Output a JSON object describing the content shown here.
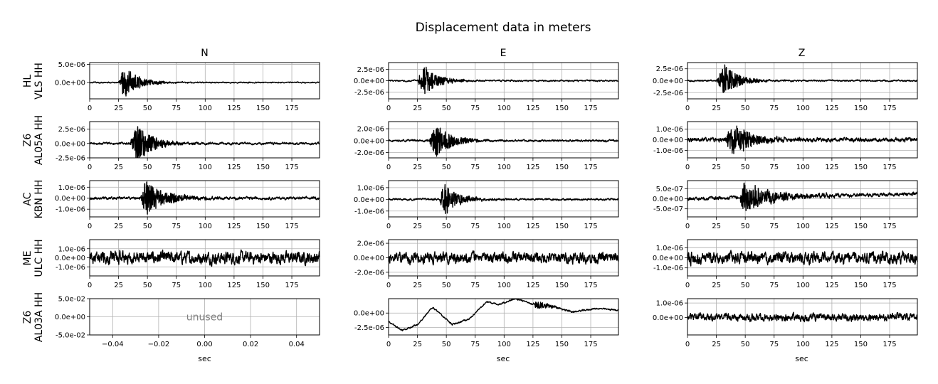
{
  "figure": {
    "title": "Displacement data in meters",
    "columns": [
      "N",
      "E",
      "Z"
    ],
    "xlabel": "sec"
  },
  "rows": [
    {
      "network": "HL",
      "station": "VLS HH"
    },
    {
      "network": "Z6",
      "station": "AL05A HH"
    },
    {
      "network": "AC",
      "station": "KBN HH"
    },
    {
      "network": "ME",
      "station": "ULC HH"
    },
    {
      "network": "Z6",
      "station": "AL03A HH"
    }
  ],
  "chart_data": [
    {
      "type": "line",
      "row": 0,
      "col": "N",
      "xlim": [
        0,
        199
      ],
      "ylim": [
        -4.5e-06,
        5.5e-06
      ],
      "xticks": [
        0,
        25,
        50,
        75,
        100,
        125,
        150,
        175
      ],
      "xtick_labels": [
        "0",
        "25",
        "50",
        "75",
        "100",
        "125",
        "150",
        "175"
      ],
      "yticks": [
        0,
        5e-06
      ],
      "ytick_labels": [
        "0.0e+00",
        "5.0e-06"
      ],
      "grid": true,
      "series": [
        {
          "color": "#000000",
          "amp": 4.8e-06,
          "event_start": 25,
          "peak_time": 30,
          "decay": 12,
          "noise": 3e-07,
          "drift": 0,
          "seed": 1
        }
      ]
    },
    {
      "type": "line",
      "row": 0,
      "col": "E",
      "xlim": [
        0,
        199
      ],
      "ylim": [
        -4e-06,
        4e-06
      ],
      "xticks": [
        0,
        25,
        50,
        75,
        100,
        125,
        150,
        175
      ],
      "xtick_labels": [
        "0",
        "25",
        "50",
        "75",
        "100",
        "125",
        "150",
        "175"
      ],
      "yticks": [
        -2.5e-06,
        0,
        2.5e-06
      ],
      "ytick_labels": [
        "-2.5e-06",
        "0.0e+00",
        "2.5e-06"
      ],
      "grid": true,
      "series": [
        {
          "color": "#000000",
          "amp": 3.8e-06,
          "event_start": 25,
          "peak_time": 30,
          "decay": 12,
          "noise": 3e-07,
          "drift": 0,
          "seed": 2
        }
      ]
    },
    {
      "type": "line",
      "row": 0,
      "col": "Z",
      "xlim": [
        0,
        199
      ],
      "ylim": [
        -3.8e-06,
        3.8e-06
      ],
      "xticks": [
        0,
        25,
        50,
        75,
        100,
        125,
        150,
        175
      ],
      "xtick_labels": [
        "0",
        "25",
        "50",
        "75",
        "100",
        "125",
        "150",
        "175"
      ],
      "yticks": [
        -2.5e-06,
        0,
        2.5e-06
      ],
      "ytick_labels": [
        "-2.5e-06",
        "0.0e+00",
        "2.5e-06"
      ],
      "grid": true,
      "series": [
        {
          "color": "#000000",
          "amp": 3.7e-06,
          "event_start": 25,
          "peak_time": 32,
          "decay": 12,
          "noise": 3e-07,
          "drift": 0,
          "seed": 3
        }
      ]
    },
    {
      "type": "line",
      "row": 1,
      "col": "N",
      "xlim": [
        0,
        199
      ],
      "ylim": [
        -2.5e-06,
        3.8e-06
      ],
      "xticks": [
        0,
        25,
        50,
        75,
        100,
        125,
        150,
        175
      ],
      "xtick_labels": [
        "0",
        "25",
        "50",
        "75",
        "100",
        "125",
        "150",
        "175"
      ],
      "yticks": [
        -2.5e-06,
        0,
        2.5e-06
      ],
      "ytick_labels": [
        "-2.5e-06",
        "0.0e+00",
        "2.5e-06"
      ],
      "grid": true,
      "series": [
        {
          "color": "#000000",
          "amp": 3.7e-06,
          "event_start": 35,
          "peak_time": 41,
          "decay": 13,
          "noise": 3.5e-07,
          "drift": 0,
          "seed": 4
        }
      ]
    },
    {
      "type": "line",
      "row": 1,
      "col": "E",
      "xlim": [
        0,
        199
      ],
      "ylim": [
        -2.9e-06,
        3.2e-06
      ],
      "xticks": [
        0,
        25,
        50,
        75,
        100,
        125,
        150,
        175
      ],
      "xtick_labels": [
        "0",
        "25",
        "50",
        "75",
        "100",
        "125",
        "150",
        "175"
      ],
      "yticks": [
        -2e-06,
        0,
        2e-06
      ],
      "ytick_labels": [
        "-2.0e-06",
        "0.0e+00",
        "2.0e-06"
      ],
      "grid": true,
      "series": [
        {
          "color": "#000000",
          "amp": 3e-06,
          "event_start": 35,
          "peak_time": 40,
          "decay": 14,
          "noise": 3e-07,
          "drift": 0,
          "seed": 5
        }
      ]
    },
    {
      "type": "line",
      "row": 1,
      "col": "Z",
      "xlim": [
        0,
        199
      ],
      "ylim": [
        -1.7e-06,
        1.7e-06
      ],
      "xticks": [
        0,
        25,
        50,
        75,
        100,
        125,
        150,
        175
      ],
      "xtick_labels": [
        "0",
        "25",
        "50",
        "75",
        "100",
        "125",
        "150",
        "175"
      ],
      "yticks": [
        -1e-06,
        0,
        1e-06
      ],
      "ytick_labels": [
        "-1.0e-06",
        "0.0e+00",
        "1.0e-06"
      ],
      "grid": true,
      "series": [
        {
          "color": "#000000",
          "amp": 1.6e-06,
          "event_start": 32,
          "peak_time": 40,
          "decay": 16,
          "noise": 3.5e-07,
          "drift": 0,
          "seed": 6
        }
      ]
    },
    {
      "type": "line",
      "row": 2,
      "col": "N",
      "xlim": [
        0,
        199
      ],
      "ylim": [
        -1.7e-06,
        1.6e-06
      ],
      "xticks": [
        0,
        25,
        50,
        75,
        100,
        125,
        150,
        175
      ],
      "xtick_labels": [
        "0",
        "25",
        "50",
        "75",
        "100",
        "125",
        "150",
        "175"
      ],
      "yticks": [
        -1e-06,
        0,
        1e-06
      ],
      "ytick_labels": [
        "-1.0e-06",
        "0.0e+00",
        "1.0e-06"
      ],
      "grid": true,
      "series": [
        {
          "color": "#000000",
          "amp": 1.6e-06,
          "event_start": 44,
          "peak_time": 48,
          "decay": 18,
          "noise": 2.2e-07,
          "drift": 0,
          "seed": 7
        }
      ]
    },
    {
      "type": "line",
      "row": 2,
      "col": "E",
      "xlim": [
        0,
        199
      ],
      "ylim": [
        -1.5e-06,
        1.6e-06
      ],
      "xticks": [
        0,
        25,
        50,
        75,
        100,
        125,
        150,
        175
      ],
      "xtick_labels": [
        "0",
        "25",
        "50",
        "75",
        "100",
        "125",
        "150",
        "175"
      ],
      "yticks": [
        -1e-06,
        0,
        1e-06
      ],
      "ytick_labels": [
        "-1.0e-06",
        "0.0e+00",
        "1.0e-06"
      ],
      "grid": true,
      "series": [
        {
          "color": "#000000",
          "amp": 1.5e-06,
          "event_start": 44,
          "peak_time": 48,
          "decay": 12,
          "noise": 1.5e-07,
          "drift": 0,
          "seed": 8
        }
      ]
    },
    {
      "type": "line",
      "row": 2,
      "col": "Z",
      "xlim": [
        0,
        199
      ],
      "ylim": [
        -9e-07,
        9e-07
      ],
      "xticks": [
        0,
        25,
        50,
        75,
        100,
        125,
        150,
        175
      ],
      "xtick_labels": [
        "0",
        "25",
        "50",
        "75",
        "100",
        "125",
        "150",
        "175"
      ],
      "yticks": [
        -5e-07,
        0,
        5e-07
      ],
      "ytick_labels": [
        "-5.0e-07",
        "0.0e+00",
        "5.0e-07"
      ],
      "grid": true,
      "series": [
        {
          "color": "#000000",
          "amp": 8e-07,
          "event_start": 45,
          "peak_time": 48,
          "decay": 25,
          "noise": 1.6e-07,
          "drift": 2.5e-07,
          "seed": 9
        }
      ]
    },
    {
      "type": "line",
      "row": 3,
      "col": "N",
      "xlim": [
        0,
        199
      ],
      "ylim": [
        -2e-06,
        2e-06
      ],
      "xticks": [
        0,
        25,
        50,
        75,
        100,
        125,
        150,
        175
      ],
      "xtick_labels": [
        "0",
        "25",
        "50",
        "75",
        "100",
        "125",
        "150",
        "175"
      ],
      "yticks": [
        -1e-06,
        0,
        1e-06
      ],
      "ytick_labels": [
        "-1.0e-06",
        "0.0e+00",
        "1.0e-06"
      ],
      "grid": true,
      "series": [
        {
          "color": "#000000",
          "amp": 0,
          "event_start": 0,
          "peak_time": 0,
          "decay": 1,
          "noise": 1.2e-06,
          "drift": 0,
          "seed": 10
        }
      ]
    },
    {
      "type": "line",
      "row": 3,
      "col": "E",
      "xlim": [
        0,
        199
      ],
      "ylim": [
        -2.5e-06,
        2.5e-06
      ],
      "xticks": [
        0,
        25,
        50,
        75,
        100,
        125,
        150,
        175
      ],
      "xtick_labels": [
        "0",
        "25",
        "50",
        "75",
        "100",
        "125",
        "150",
        "175"
      ],
      "yticks": [
        -2e-06,
        0,
        2e-06
      ],
      "ytick_labels": [
        "-2.0e-06",
        "0.0e+00",
        "2.0e-06"
      ],
      "grid": true,
      "series": [
        {
          "color": "#000000",
          "amp": 0,
          "event_start": 0,
          "peak_time": 0,
          "decay": 1,
          "noise": 1.3e-06,
          "drift": 0,
          "seed": 11
        }
      ]
    },
    {
      "type": "line",
      "row": 3,
      "col": "Z",
      "xlim": [
        0,
        199
      ],
      "ylim": [
        -1.8e-06,
        1.8e-06
      ],
      "xticks": [
        0,
        25,
        50,
        75,
        100,
        125,
        150,
        175
      ],
      "xtick_labels": [
        "0",
        "25",
        "50",
        "75",
        "100",
        "125",
        "150",
        "175"
      ],
      "yticks": [
        -1e-06,
        0,
        1e-06
      ],
      "ytick_labels": [
        "-1.0e-06",
        "0.0e+00",
        "1.0e-06"
      ],
      "grid": true,
      "series": [
        {
          "color": "#000000",
          "amp": 0,
          "event_start": 0,
          "peak_time": 0,
          "decay": 1,
          "noise": 1.05e-06,
          "drift": 0,
          "seed": 12
        }
      ]
    },
    {
      "type": "line",
      "row": 4,
      "col": "N",
      "xlim": [
        -0.05,
        0.05
      ],
      "ylim": [
        -0.05,
        0.05
      ],
      "xticks": [
        -0.04,
        -0.02,
        0,
        0.02,
        0.04
      ],
      "xtick_labels": [
        "−0.04",
        "−0.02",
        "0.00",
        "0.02",
        "0.04"
      ],
      "yticks": [
        -0.05,
        0,
        0.05
      ],
      "ytick_labels": [
        "-5.0e-02",
        "0.0e+00",
        "5.0e-02"
      ],
      "grid": true,
      "annotation": "unused",
      "series": []
    },
    {
      "type": "line",
      "row": 4,
      "col": "E",
      "xlim": [
        0,
        199
      ],
      "ylim": [
        -3.8e-06,
        2.5e-06
      ],
      "xticks": [
        0,
        25,
        50,
        75,
        100,
        125,
        150,
        175
      ],
      "xtick_labels": [
        "0",
        "25",
        "50",
        "75",
        "100",
        "125",
        "150",
        "175"
      ],
      "yticks": [
        -2.5e-06,
        0
      ],
      "ytick_labels": [
        "-2.5e-06",
        "0.0e+00"
      ],
      "grid": true,
      "series": [
        {
          "color": "#000000",
          "amp": 9e-07,
          "event_start": 125,
          "peak_time": 128,
          "decay": 10,
          "noise": 2.5e-07,
          "drift": 0,
          "seed": 13,
          "base_points": [
            [
              0,
              -1.5e-06
            ],
            [
              12,
              -3e-06
            ],
            [
              25,
              -2e-06
            ],
            [
              38,
              1e-06
            ],
            [
              55,
              -2e-06
            ],
            [
              70,
              -1e-06
            ],
            [
              85,
              2e-06
            ],
            [
              95,
              1.5e-06
            ],
            [
              110,
              2.5e-06
            ],
            [
              125,
              1.5e-06
            ],
            [
              140,
              1.2e-06
            ],
            [
              160,
              2e-07
            ],
            [
              180,
              8e-07
            ],
            [
              199,
              5e-07
            ]
          ]
        }
      ]
    },
    {
      "type": "line",
      "row": 4,
      "col": "Z",
      "xlim": [
        0,
        199
      ],
      "ylim": [
        -1.2e-06,
        1.3e-06
      ],
      "xticks": [
        0,
        25,
        50,
        75,
        100,
        125,
        150,
        175
      ],
      "xtick_labels": [
        "0",
        "25",
        "50",
        "75",
        "100",
        "125",
        "150",
        "175"
      ],
      "yticks": [
        0,
        1e-06
      ],
      "ytick_labels": [
        "0.0e+00",
        "1.0e-06"
      ],
      "grid": true,
      "series": [
        {
          "color": "#000000",
          "amp": 0,
          "event_start": 0,
          "peak_time": 0,
          "decay": 1,
          "noise": 4.5e-07,
          "drift": 0,
          "seed": 14
        }
      ]
    }
  ]
}
